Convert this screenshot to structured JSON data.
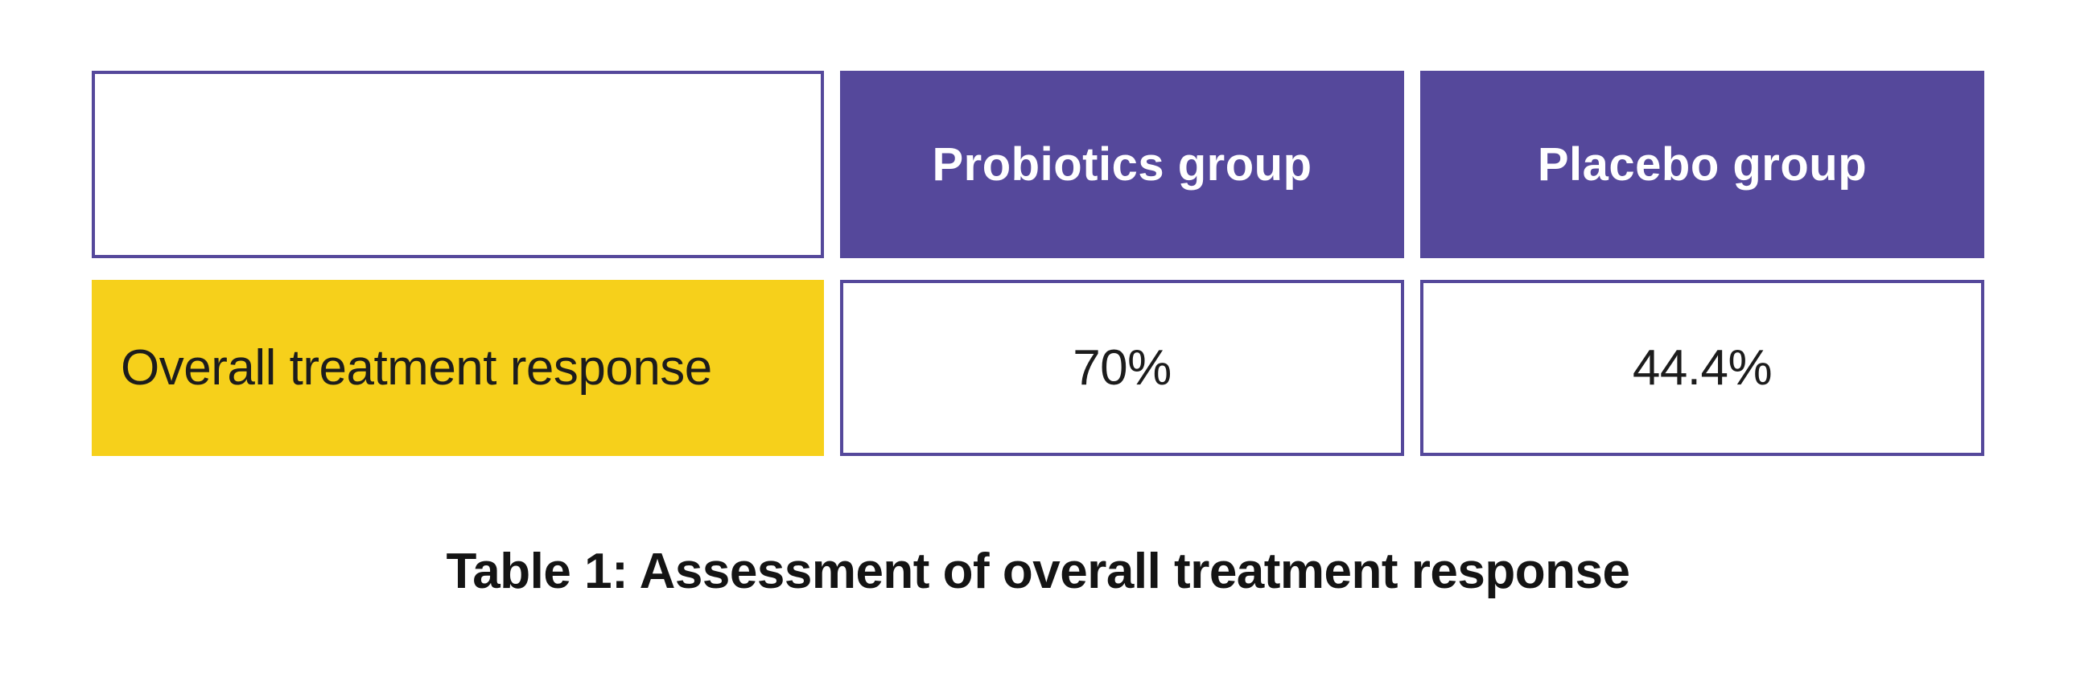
{
  "table": {
    "corner": "",
    "headers": [
      "Probiotics group",
      "Placebo group"
    ],
    "row": {
      "label": "Overall treatment response",
      "probiotics": "70%",
      "placebo": "44.4%"
    },
    "caption": "Table 1: Assessment of overall treatment response"
  },
  "chart_data": {
    "type": "table",
    "title": "Table 1: Assessment of overall treatment response",
    "columns": [
      "",
      "Probiotics group",
      "Placebo group"
    ],
    "rows": [
      [
        "Overall treatment response",
        "70%",
        "44.4%"
      ]
    ],
    "values": {
      "probiotics_group_pct": 70,
      "placebo_group_pct": 44.4
    },
    "layout_hints": {
      "header_fill": "#55489B",
      "row_label_fill": "#F6D01B",
      "border_color": "#55489B",
      "caption_position": "below-table-centered"
    }
  },
  "colors": {
    "purple": "#55489B",
    "yellow": "#F6D01B",
    "header_text": "#FFFFFF",
    "body_text": "#1C1C1C",
    "caption_text": "#141414",
    "background": "#FFFFFF"
  }
}
